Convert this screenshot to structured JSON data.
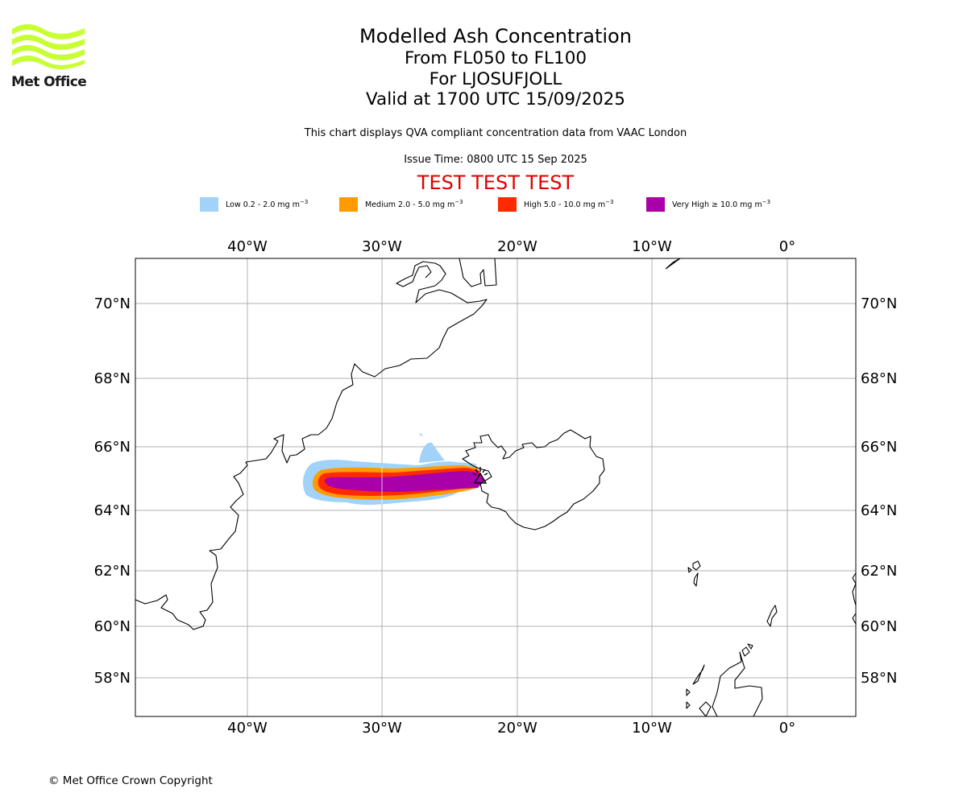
{
  "header": {
    "logo_text": "Met Office",
    "title": "Modelled Ash Concentration",
    "level_range": "From FL050 to FL100",
    "volcano": "For LJOSUFJOLL",
    "valid_time": "Valid at 1700 UTC 15/09/2025",
    "description": "This chart displays QVA compliant concentration data from VAAC London",
    "issue_time": "Issue Time: 0800 UTC 15 Sep 2025",
    "test_banner": "TEST TEST TEST"
  },
  "legend": [
    {
      "label": "Low 0.2 - 2.0 mg m",
      "exp": "−3",
      "color": "#a0d2fa"
    },
    {
      "label": "Medium 2.0 - 5.0 mg m",
      "exp": "−3",
      "color": "#ff9a00"
    },
    {
      "label": "High 5.0 - 10.0 mg m",
      "exp": "−3",
      "color": "#ff2a00"
    },
    {
      "label": "Very High ≥ 10.0 mg m",
      "exp": "−3",
      "color": "#aa00aa"
    }
  ],
  "map": {
    "lon_ticks": [
      "40°W",
      "30°W",
      "20°W",
      "10°W",
      "0°"
    ],
    "lat_ticks": [
      "70°N",
      "68°N",
      "66°N",
      "64°N",
      "62°N",
      "60°N",
      "58°N"
    ],
    "gridlines": true,
    "volcano_marker": "volcano-symbol"
  },
  "footer": {
    "copyright": "© Met Office Crown Copyright"
  }
}
